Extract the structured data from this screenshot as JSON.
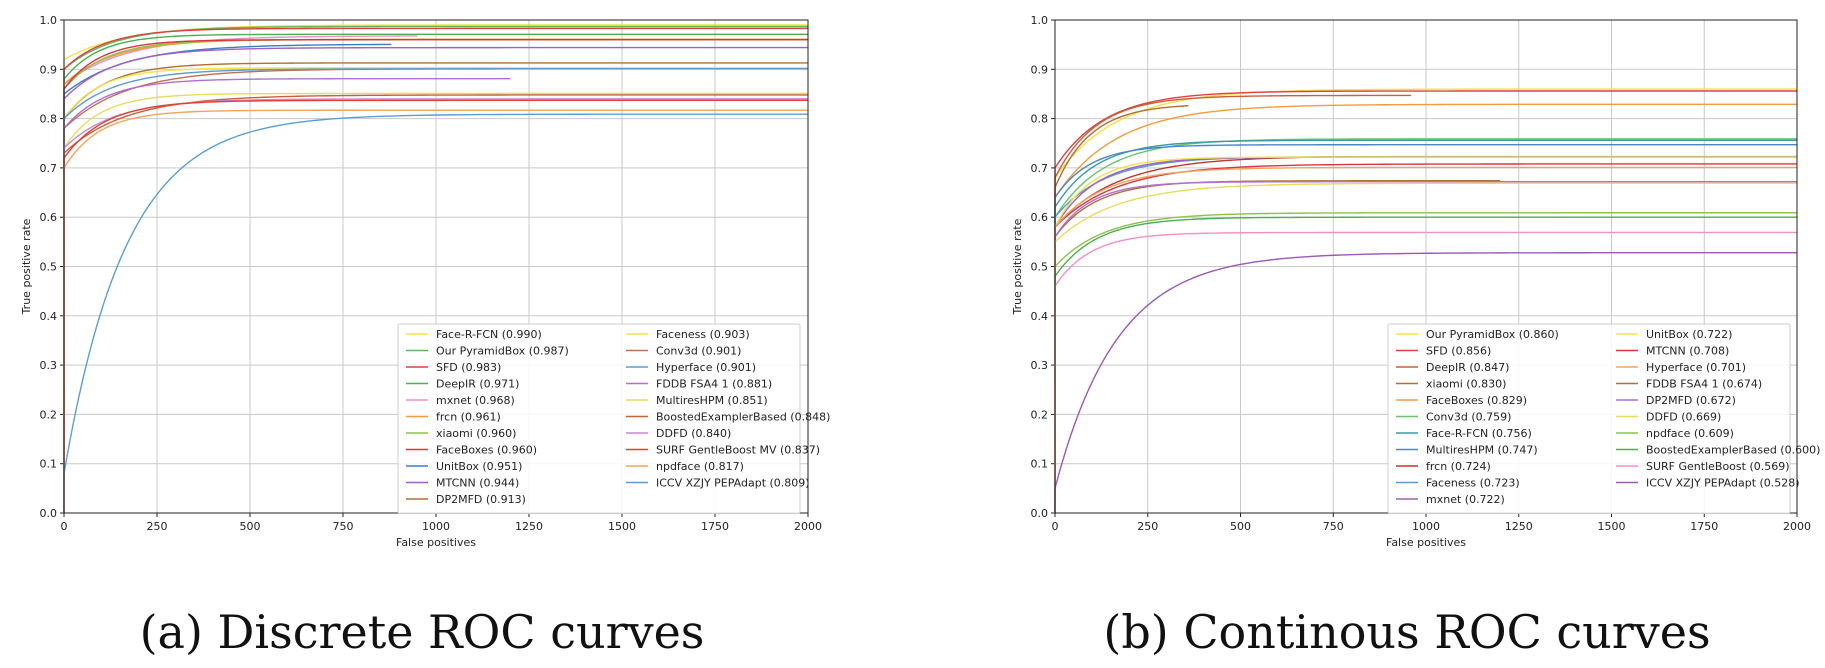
{
  "chart_data": [
    {
      "type": "line",
      "caption": "(a) Discrete ROC curves",
      "xlabel": "False positives",
      "ylabel": "True positive rate",
      "xlim": [
        0,
        2000
      ],
      "ylim": [
        0,
        1.0
      ],
      "xticks": [
        "0",
        "250",
        "500",
        "750",
        "1000",
        "1250",
        "1500",
        "1750",
        "2000"
      ],
      "yticks": [
        "0.0",
        "0.1",
        "0.2",
        "0.3",
        "0.4",
        "0.5",
        "0.6",
        "0.7",
        "0.8",
        "0.9",
        "1.0"
      ],
      "grid": true,
      "legend_position": "lower-right",
      "series": [
        {
          "name": "Face-R-FCN (0.990)",
          "color": "#f5e04a",
          "start": 0.92,
          "final": 0.99,
          "end_x": 2000
        },
        {
          "name": "Our PyramidBox (0.987)",
          "color": "#5cb85c",
          "start": 0.9,
          "final": 0.987,
          "end_x": 2000
        },
        {
          "name": "SFD (0.983)",
          "color": "#e04040",
          "start": 0.9,
          "final": 0.983,
          "end_x": 2000
        },
        {
          "name": "DeepIR (0.971)",
          "color": "#4caf50",
          "start": 0.88,
          "final": 0.971,
          "end_x": 2000
        },
        {
          "name": "mxnet (0.968)",
          "color": "#f28ec8",
          "start": 0.87,
          "final": 0.968,
          "end_x": 950
        },
        {
          "name": "frcn (0.961)",
          "color": "#f59b3b",
          "start": 0.87,
          "final": 0.961,
          "end_x": 2000
        },
        {
          "name": "xiaomi (0.960)",
          "color": "#8bc34a",
          "start": 0.86,
          "final": 0.96,
          "end_x": 2000
        },
        {
          "name": "FaceBoxes (0.960)",
          "color": "#d9363e",
          "start": 0.86,
          "final": 0.96,
          "end_x": 2000
        },
        {
          "name": "UnitBox (0.951)",
          "color": "#3a7dc9",
          "start": 0.85,
          "final": 0.951,
          "end_x": 880
        },
        {
          "name": "MTCNN (0.944)",
          "color": "#a45fc4",
          "start": 0.84,
          "final": 0.944,
          "end_x": 2000
        },
        {
          "name": "DP2MFD (0.913)",
          "color": "#b07030",
          "start": 0.8,
          "final": 0.913,
          "end_x": 2000
        },
        {
          "name": "Faceness (0.903)",
          "color": "#f2e34a",
          "start": 0.8,
          "final": 0.903,
          "end_x": 2000
        },
        {
          "name": "Conv3d (0.901)",
          "color": "#c0704f",
          "start": 0.78,
          "final": 0.901,
          "end_x": 2000
        },
        {
          "name": "Hyperface (0.901)",
          "color": "#5b9bd5",
          "start": 0.8,
          "final": 0.901,
          "end_x": 2000
        },
        {
          "name": "FDDB FSA4 1 (0.881)",
          "color": "#b26fd1",
          "start": 0.78,
          "final": 0.881,
          "end_x": 1200
        },
        {
          "name": "MultiresHPM (0.851)",
          "color": "#e8dc5a",
          "start": 0.74,
          "final": 0.851,
          "end_x": 2000
        },
        {
          "name": "BoostedExamplerBased (0.848)",
          "color": "#c9603a",
          "start": 0.73,
          "final": 0.848,
          "end_x": 2000
        },
        {
          "name": "DDFD (0.840)",
          "color": "#c68ad6",
          "start": 0.74,
          "final": 0.84,
          "end_x": 2000
        },
        {
          "name": "SURF GentleBoost MV (0.837)",
          "color": "#e3412f",
          "start": 0.72,
          "final": 0.837,
          "end_x": 2000
        },
        {
          "name": "npdface (0.817)",
          "color": "#f5a25b",
          "start": 0.7,
          "final": 0.817,
          "end_x": 2000
        },
        {
          "name": "ICCV XZJY PEPAdapt (0.809)",
          "color": "#5a9fd4",
          "start": 0.08,
          "final": 0.809,
          "end_x": 2000
        }
      ]
    },
    {
      "type": "line",
      "caption": "(b) Continous ROC curves",
      "xlabel": "False positives",
      "ylabel": "True positive rate",
      "xlim": [
        0,
        2000
      ],
      "ylim": [
        0,
        1.0
      ],
      "xticks": [
        "0",
        "250",
        "500",
        "750",
        "1000",
        "1250",
        "1500",
        "1750",
        "2000"
      ],
      "yticks": [
        "0.0",
        "0.1",
        "0.2",
        "0.3",
        "0.4",
        "0.5",
        "0.6",
        "0.7",
        "0.8",
        "0.9",
        "1.0"
      ],
      "grid": true,
      "legend_position": "lower-right",
      "series": [
        {
          "name": "Our PyramidBox (0.860)",
          "color": "#f5e04a",
          "start": 0.68,
          "final": 0.86,
          "end_x": 2000
        },
        {
          "name": "SFD (0.856)",
          "color": "#e04040",
          "start": 0.7,
          "final": 0.856,
          "end_x": 2000
        },
        {
          "name": "DeepIR (0.847)",
          "color": "#c9603a",
          "start": 0.68,
          "final": 0.847,
          "end_x": 960
        },
        {
          "name": "xiaomi (0.830)",
          "color": "#b07030",
          "start": 0.66,
          "final": 0.83,
          "end_x": 360
        },
        {
          "name": "FaceBoxes (0.829)",
          "color": "#f59b3b",
          "start": 0.64,
          "final": 0.829,
          "end_x": 2000
        },
        {
          "name": "Conv3d (0.759)",
          "color": "#6cc36c",
          "start": 0.6,
          "final": 0.759,
          "end_x": 2000
        },
        {
          "name": "Face-R-FCN (0.756)",
          "color": "#3a9aa8",
          "start": 0.62,
          "final": 0.756,
          "end_x": 2000
        },
        {
          "name": "MultiresHPM (0.747)",
          "color": "#4a86c8",
          "start": 0.64,
          "final": 0.747,
          "end_x": 2000
        },
        {
          "name": "frcn (0.724)",
          "color": "#c0392b",
          "start": 0.58,
          "final": 0.724,
          "end_x": 750
        },
        {
          "name": "Faceness (0.723)",
          "color": "#5b9bd5",
          "start": 0.6,
          "final": 0.723,
          "end_x": 2000
        },
        {
          "name": "mxnet (0.722)",
          "color": "#a45fc4",
          "start": 0.58,
          "final": 0.722,
          "end_x": 2000
        },
        {
          "name": "UnitBox (0.722)",
          "color": "#f2e34a",
          "start": 0.58,
          "final": 0.722,
          "end_x": 2000
        },
        {
          "name": "MTCNN (0.708)",
          "color": "#d9363e",
          "start": 0.58,
          "final": 0.708,
          "end_x": 2000
        },
        {
          "name": "Hyperface (0.701)",
          "color": "#f5a25b",
          "start": 0.58,
          "final": 0.701,
          "end_x": 2000
        },
        {
          "name": "FDDB FSA4 1 (0.674)",
          "color": "#b0703a",
          "start": 0.56,
          "final": 0.674,
          "end_x": 1200
        },
        {
          "name": "DP2MFD (0.672)",
          "color": "#b26fd1",
          "start": 0.56,
          "final": 0.672,
          "end_x": 2000
        },
        {
          "name": "DDFD (0.669)",
          "color": "#e8dc5a",
          "start": 0.55,
          "final": 0.669,
          "end_x": 2000
        },
        {
          "name": "npdface (0.609)",
          "color": "#8bc34a",
          "start": 0.5,
          "final": 0.609,
          "end_x": 2000
        },
        {
          "name": "BoostedExamplerBased (0.600)",
          "color": "#4caf50",
          "start": 0.48,
          "final": 0.6,
          "end_x": 2000
        },
        {
          "name": "SURF GentleBoost (0.569)",
          "color": "#f48fc6",
          "start": 0.46,
          "final": 0.569,
          "end_x": 2000
        },
        {
          "name": "ICCV XZJY PEPAdapt (0.528)",
          "color": "#9b59b6",
          "start": 0.05,
          "final": 0.528,
          "end_x": 2000
        }
      ]
    }
  ]
}
